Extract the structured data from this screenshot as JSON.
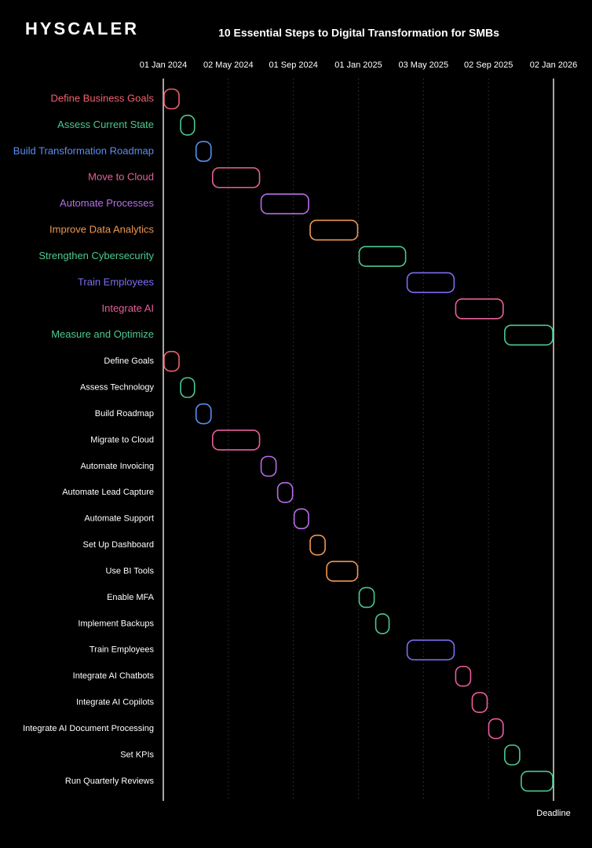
{
  "logo": "HYSCALER",
  "chart_data": {
    "type": "gantt",
    "title": "10 Essential Steps to Digital Transformation for SMBs",
    "xlim": [
      "2024-01-01",
      "2026-01-02"
    ],
    "xticks": [
      {
        "value": "2024-01-01",
        "label": "01 Jan 2024"
      },
      {
        "value": "2024-05-02",
        "label": "02 May 2024"
      },
      {
        "value": "2024-09-01",
        "label": "01 Sep 2024"
      },
      {
        "value": "2025-01-01",
        "label": "01 Jan 2025"
      },
      {
        "value": "2025-05-03",
        "label": "03 May 2025"
      },
      {
        "value": "2025-09-02",
        "label": "02 Sep 2025"
      },
      {
        "value": "2026-01-02",
        "label": "02 Jan 2026"
      }
    ],
    "grid": true,
    "deadline": {
      "label": "Deadline",
      "date": "2026-01-02"
    },
    "phases": [
      {
        "name": "Define Business Goals",
        "start": "2024-01-01",
        "end": "2024-02-01",
        "color": "#f0606e"
      },
      {
        "name": "Assess Current State",
        "start": "2024-02-01",
        "end": "2024-03-01",
        "color": "#4cc98f"
      },
      {
        "name": "Build Transformation Roadmap",
        "start": "2024-03-01",
        "end": "2024-04-01",
        "color": "#5b8ff0"
      },
      {
        "name": "Move to Cloud",
        "start": "2024-04-01",
        "end": "2024-07-01",
        "color": "#e85f9a"
      },
      {
        "name": "Automate Processes",
        "start": "2024-07-01",
        "end": "2024-10-01",
        "color": "#b86de8"
      },
      {
        "name": "Improve Data Analytics",
        "start": "2024-10-01",
        "end": "2025-01-01",
        "color": "#ee9852"
      },
      {
        "name": "Strengthen Cybersecurity",
        "start": "2025-01-01",
        "end": "2025-04-01",
        "color": "#4cc98f"
      },
      {
        "name": "Train Employees",
        "start": "2025-04-01",
        "end": "2025-07-01",
        "color": "#7c6ef2"
      },
      {
        "name": "Integrate AI",
        "start": "2025-07-01",
        "end": "2025-10-01",
        "color": "#e85f9a"
      },
      {
        "name": "Measure and Optimize",
        "start": "2025-10-01",
        "end": "2026-01-02",
        "color": "#4cc98f"
      }
    ],
    "steps": [
      {
        "name": "Define Goals",
        "start": "2024-01-01",
        "end": "2024-02-01",
        "color": "#f0606e"
      },
      {
        "name": "Assess Technology",
        "start": "2024-02-01",
        "end": "2024-03-01",
        "color": "#4cc98f"
      },
      {
        "name": "Build Roadmap",
        "start": "2024-03-01",
        "end": "2024-04-01",
        "color": "#5b8ff0"
      },
      {
        "name": "Migrate to Cloud",
        "start": "2024-04-01",
        "end": "2024-07-01",
        "color": "#e85f9a"
      },
      {
        "name": "Automate Invoicing",
        "start": "2024-07-01",
        "end": "2024-08-01",
        "color": "#b86de8"
      },
      {
        "name": "Automate Lead Capture",
        "start": "2024-08-01",
        "end": "2024-09-01",
        "color": "#b86de8"
      },
      {
        "name": "Automate Support",
        "start": "2024-09-01",
        "end": "2024-10-01",
        "color": "#b86de8"
      },
      {
        "name": "Set Up Dashboard",
        "start": "2024-10-01",
        "end": "2024-11-01",
        "color": "#ee9852"
      },
      {
        "name": "Use BI Tools",
        "start": "2024-11-01",
        "end": "2025-01-01",
        "color": "#ee9852"
      },
      {
        "name": "Enable MFA",
        "start": "2025-01-01",
        "end": "2025-02-01",
        "color": "#4cc98f"
      },
      {
        "name": "Implement Backups",
        "start": "2025-02-01",
        "end": "2025-03-01",
        "color": "#4cc98f"
      },
      {
        "name": "Train Employees",
        "start": "2025-04-01",
        "end": "2025-07-01",
        "color": "#7c6ef2"
      },
      {
        "name": "Integrate AI Chatbots",
        "start": "2025-07-01",
        "end": "2025-08-01",
        "color": "#e85f9a"
      },
      {
        "name": "Integrate AI Copilots",
        "start": "2025-08-01",
        "end": "2025-09-01",
        "color": "#e85f9a"
      },
      {
        "name": "Integrate AI Document Processing",
        "start": "2025-09-01",
        "end": "2025-10-01",
        "color": "#e85f9a"
      },
      {
        "name": "Set KPIs",
        "start": "2025-10-01",
        "end": "2025-11-01",
        "color": "#4cc98f"
      },
      {
        "name": "Run Quarterly Reviews",
        "start": "2025-11-01",
        "end": "2026-01-02",
        "color": "#4cc98f"
      }
    ]
  }
}
